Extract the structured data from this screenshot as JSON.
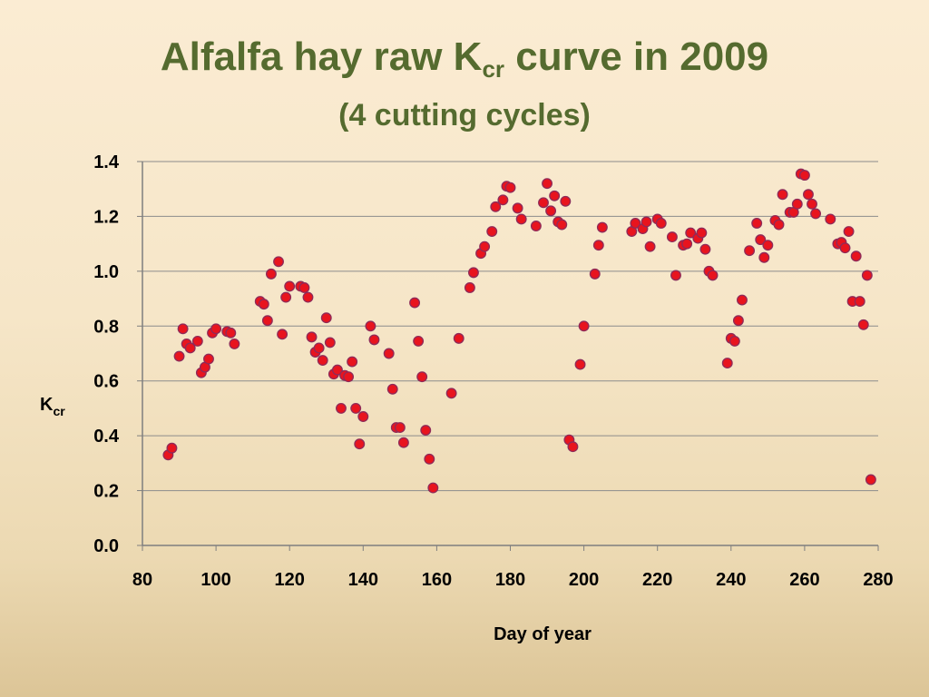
{
  "slide": {
    "title_main": "Alfalfa hay raw K",
    "title_sub": "cr",
    "title_tail": " curve in 2009",
    "subtitle": "(4 cutting cycles)"
  },
  "chart_data": {
    "type": "scatter",
    "xlabel": "Day of year",
    "ylabel_main": "K",
    "ylabel_sub": "cr",
    "xlim": [
      80,
      280
    ],
    "ylim": [
      0,
      1.4
    ],
    "xticks": [
      80,
      100,
      120,
      140,
      160,
      180,
      200,
      220,
      240,
      260,
      280
    ],
    "yticks": [
      0.0,
      0.2,
      0.4,
      0.6,
      0.8,
      1.0,
      1.2,
      1.4
    ],
    "ytick_labels": [
      "0.0",
      "0.2",
      "0.4",
      "0.6",
      "0.8",
      "1.0",
      "1.2",
      "1.4"
    ],
    "grid": "horizontal",
    "marker_color": "#e8141e",
    "marker_edge": "#8e2b59",
    "series": [
      {
        "x": [
          87,
          88,
          90,
          91,
          92,
          93,
          95,
          96,
          97,
          98,
          99,
          100,
          103,
          104,
          105,
          112,
          113,
          114,
          115,
          117,
          118,
          119,
          120,
          123,
          124,
          125,
          126,
          127,
          128,
          129,
          130,
          131,
          132,
          133,
          134,
          135,
          136,
          137,
          138,
          139,
          140,
          142,
          143,
          147,
          148,
          149,
          150,
          151,
          154,
          155,
          156,
          157,
          158,
          159,
          164,
          166,
          169,
          170,
          172,
          173,
          175,
          176,
          178,
          179,
          180,
          182,
          183,
          187,
          189,
          190,
          191,
          192,
          193,
          194,
          195,
          196,
          197,
          199,
          200,
          203,
          204,
          205,
          213,
          214,
          216,
          217,
          218,
          220,
          221,
          224,
          225,
          227,
          228,
          229,
          231,
          232,
          233,
          234,
          235,
          239,
          240,
          241,
          242,
          243,
          245,
          247,
          248,
          249,
          250,
          252,
          253,
          254,
          256,
          257,
          258,
          259,
          260,
          261,
          262,
          263,
          267,
          269,
          270,
          271,
          272,
          273,
          274,
          275,
          276,
          277,
          278
        ],
        "y": [
          0.33,
          0.355,
          0.69,
          0.79,
          0.735,
          0.72,
          0.745,
          0.63,
          0.65,
          0.68,
          0.775,
          0.79,
          0.78,
          0.775,
          0.735,
          0.89,
          0.88,
          0.82,
          0.99,
          1.035,
          0.77,
          0.905,
          0.945,
          0.945,
          0.94,
          0.905,
          0.76,
          0.705,
          0.72,
          0.675,
          0.83,
          0.74,
          0.625,
          0.64,
          0.5,
          0.62,
          0.615,
          0.67,
          0.5,
          0.37,
          0.47,
          0.8,
          0.75,
          0.7,
          0.57,
          0.43,
          0.43,
          0.375,
          0.885,
          0.745,
          0.615,
          0.42,
          0.315,
          0.21,
          0.555,
          0.755,
          0.94,
          0.995,
          1.065,
          1.09,
          1.145,
          1.235,
          1.26,
          1.31,
          1.305,
          1.23,
          1.19,
          1.165,
          1.25,
          1.32,
          1.22,
          1.275,
          1.18,
          1.17,
          1.255,
          0.385,
          0.36,
          0.66,
          0.8,
          0.99,
          1.095,
          1.16,
          1.145,
          1.175,
          1.155,
          1.18,
          1.09,
          1.19,
          1.175,
          1.125,
          0.985,
          1.095,
          1.1,
          1.14,
          1.12,
          1.14,
          1.08,
          1.0,
          0.985,
          0.665,
          0.755,
          0.745,
          0.82,
          0.895,
          1.075,
          1.175,
          1.115,
          1.05,
          1.095,
          1.185,
          1.17,
          1.28,
          1.215,
          1.215,
          1.245,
          1.355,
          1.35,
          1.28,
          1.245,
          1.21,
          1.19,
          1.1,
          1.105,
          1.085,
          1.145,
          0.89,
          1.055,
          0.89,
          0.805,
          0.985,
          0.24
        ]
      }
    ]
  }
}
